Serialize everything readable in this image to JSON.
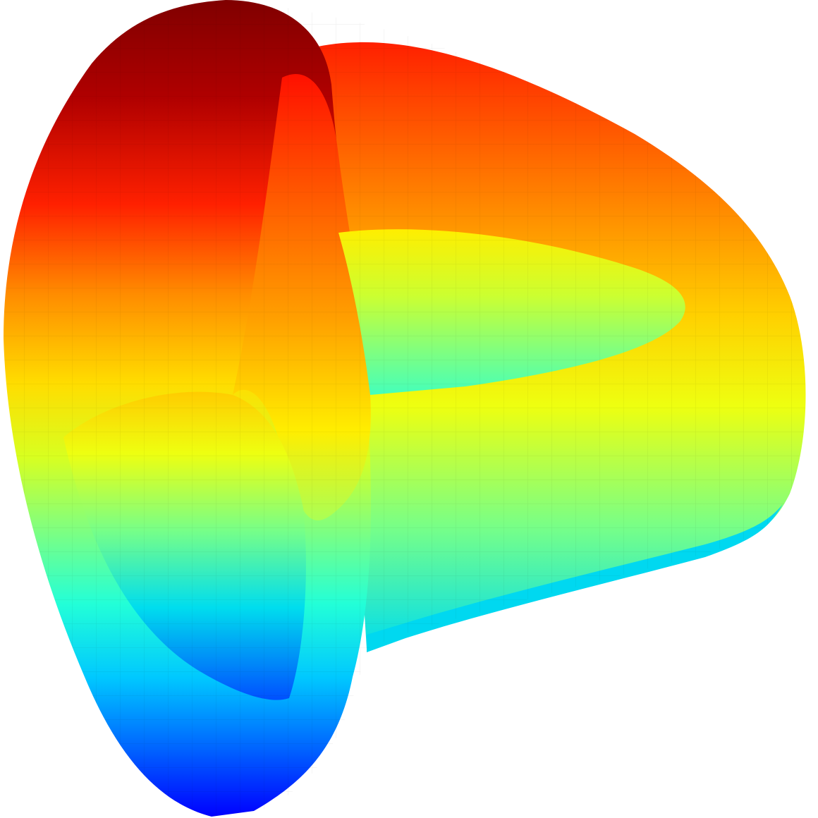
{
  "chart_data": {
    "type": "surface",
    "colormap": "jet",
    "colors": {
      "high": "#800000",
      "upper": "#ff4000",
      "mid_high": "#ffee00",
      "mid": "#88ff77",
      "mid_low": "#00e0ff",
      "low": "#0000ff"
    },
    "grid": true,
    "axes_visible": false
  }
}
